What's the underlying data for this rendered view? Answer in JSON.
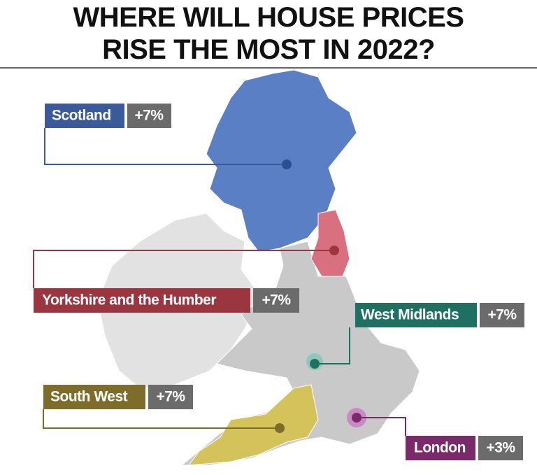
{
  "header": {
    "title_lines": [
      "WHERE WILL HOUSE PRICES",
      "RISE THE MOST IN 2022?"
    ]
  },
  "regions": [
    {
      "name": "Scotland",
      "change": "+7%"
    },
    {
      "name": "Yorkshire and the Humber",
      "change": "+7%"
    },
    {
      "name": "West Midlands",
      "change": "+7%"
    },
    {
      "name": "South West",
      "change": "+7%"
    },
    {
      "name": "London",
      "change": "+3%"
    }
  ]
}
